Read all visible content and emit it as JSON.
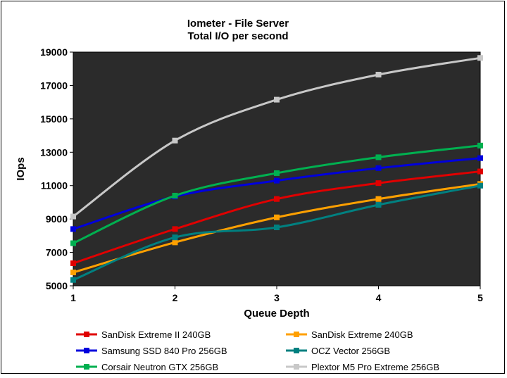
{
  "chart_data": {
    "type": "line",
    "title": "Iometer - File Server",
    "subtitle": "Total I/O per second",
    "xlabel": "Queue Depth",
    "ylabel": "IOps",
    "x": [
      1,
      2,
      3,
      4,
      5
    ],
    "xlim": [
      1,
      5
    ],
    "ylim": [
      5000,
      19000
    ],
    "yticks": [
      5000,
      7000,
      9000,
      11000,
      13000,
      15000,
      17000,
      19000
    ],
    "grid": false,
    "legend_position": "bottom",
    "plot_background": "#2b2b2b",
    "series": [
      {
        "name": "SanDisk Extreme II 240GB",
        "color": "#e00000",
        "values": [
          6350,
          8400,
          10200,
          11150,
          11850
        ]
      },
      {
        "name": "SanDisk Extreme 240GB",
        "color": "#ffa000",
        "values": [
          5800,
          7600,
          9100,
          10200,
          11100
        ]
      },
      {
        "name": "Samsung SSD 840 Pro 256GB",
        "color": "#0000dd",
        "values": [
          8400,
          10350,
          11300,
          12050,
          12650
        ]
      },
      {
        "name": "OCZ Vector 256GB",
        "color": "#008080",
        "values": [
          5350,
          7900,
          8500,
          9850,
          11000
        ]
      },
      {
        "name": "Corsair Neutron GTX 256GB",
        "color": "#00b050",
        "values": [
          7550,
          10400,
          11750,
          12700,
          13400
        ]
      },
      {
        "name": "Plextor M5 Pro Extreme 256GB",
        "color": "#c8c8c8",
        "values": [
          9150,
          13700,
          16150,
          17650,
          18650
        ]
      }
    ]
  }
}
